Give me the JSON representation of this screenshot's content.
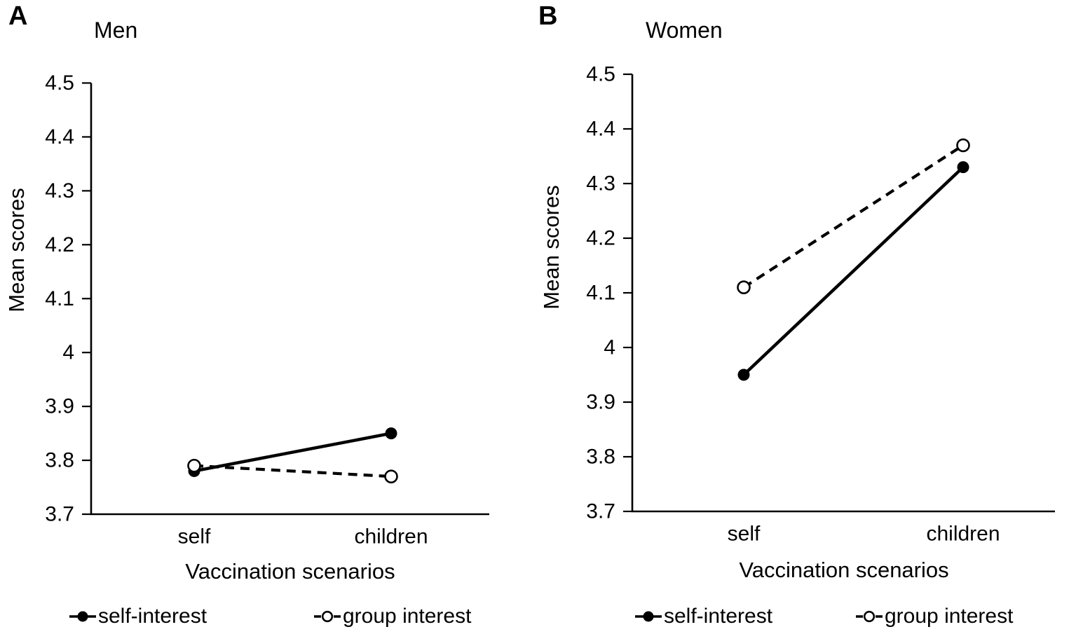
{
  "figure": {
    "background_color": "#ffffff",
    "ink_color": "#000000"
  },
  "chart_data": [
    {
      "type": "line",
      "panel_letter": "A",
      "title": "Men",
      "xlabel": "Vaccination scenarios",
      "ylabel": "Mean scores",
      "categories": [
        "self",
        "children"
      ],
      "series": [
        {
          "name": "self-interest",
          "line_style": "solid",
          "marker": "filled-circle",
          "color": "#000000",
          "values": [
            3.78,
            3.85
          ]
        },
        {
          "name": "group interest",
          "line_style": "dashed",
          "marker": "open-circle",
          "color": "#000000",
          "values": [
            3.79,
            3.77
          ]
        }
      ],
      "ylim": [
        3.7,
        4.5
      ],
      "y_ticks": [
        "4.5",
        "4.4",
        "4.3",
        "4.2",
        "4.1",
        "4",
        "3.9",
        "3.8",
        "3.7"
      ],
      "grid": false,
      "legend_position": "bottom"
    },
    {
      "type": "line",
      "panel_letter": "B",
      "title": "Women",
      "xlabel": "Vaccination scenarios",
      "ylabel": "Mean scores",
      "categories": [
        "self",
        "children"
      ],
      "series": [
        {
          "name": "self-interest",
          "line_style": "solid",
          "marker": "filled-circle",
          "color": "#000000",
          "values": [
            3.95,
            4.33
          ]
        },
        {
          "name": "group interest",
          "line_style": "dashed",
          "marker": "open-circle",
          "color": "#000000",
          "values": [
            4.11,
            4.37
          ]
        }
      ],
      "ylim": [
        3.7,
        4.5
      ],
      "y_ticks": [
        "4.5",
        "4.4",
        "4.3",
        "4.2",
        "4.1",
        "4",
        "3.9",
        "3.8",
        "3.7"
      ],
      "grid": false,
      "legend_position": "bottom"
    }
  ]
}
